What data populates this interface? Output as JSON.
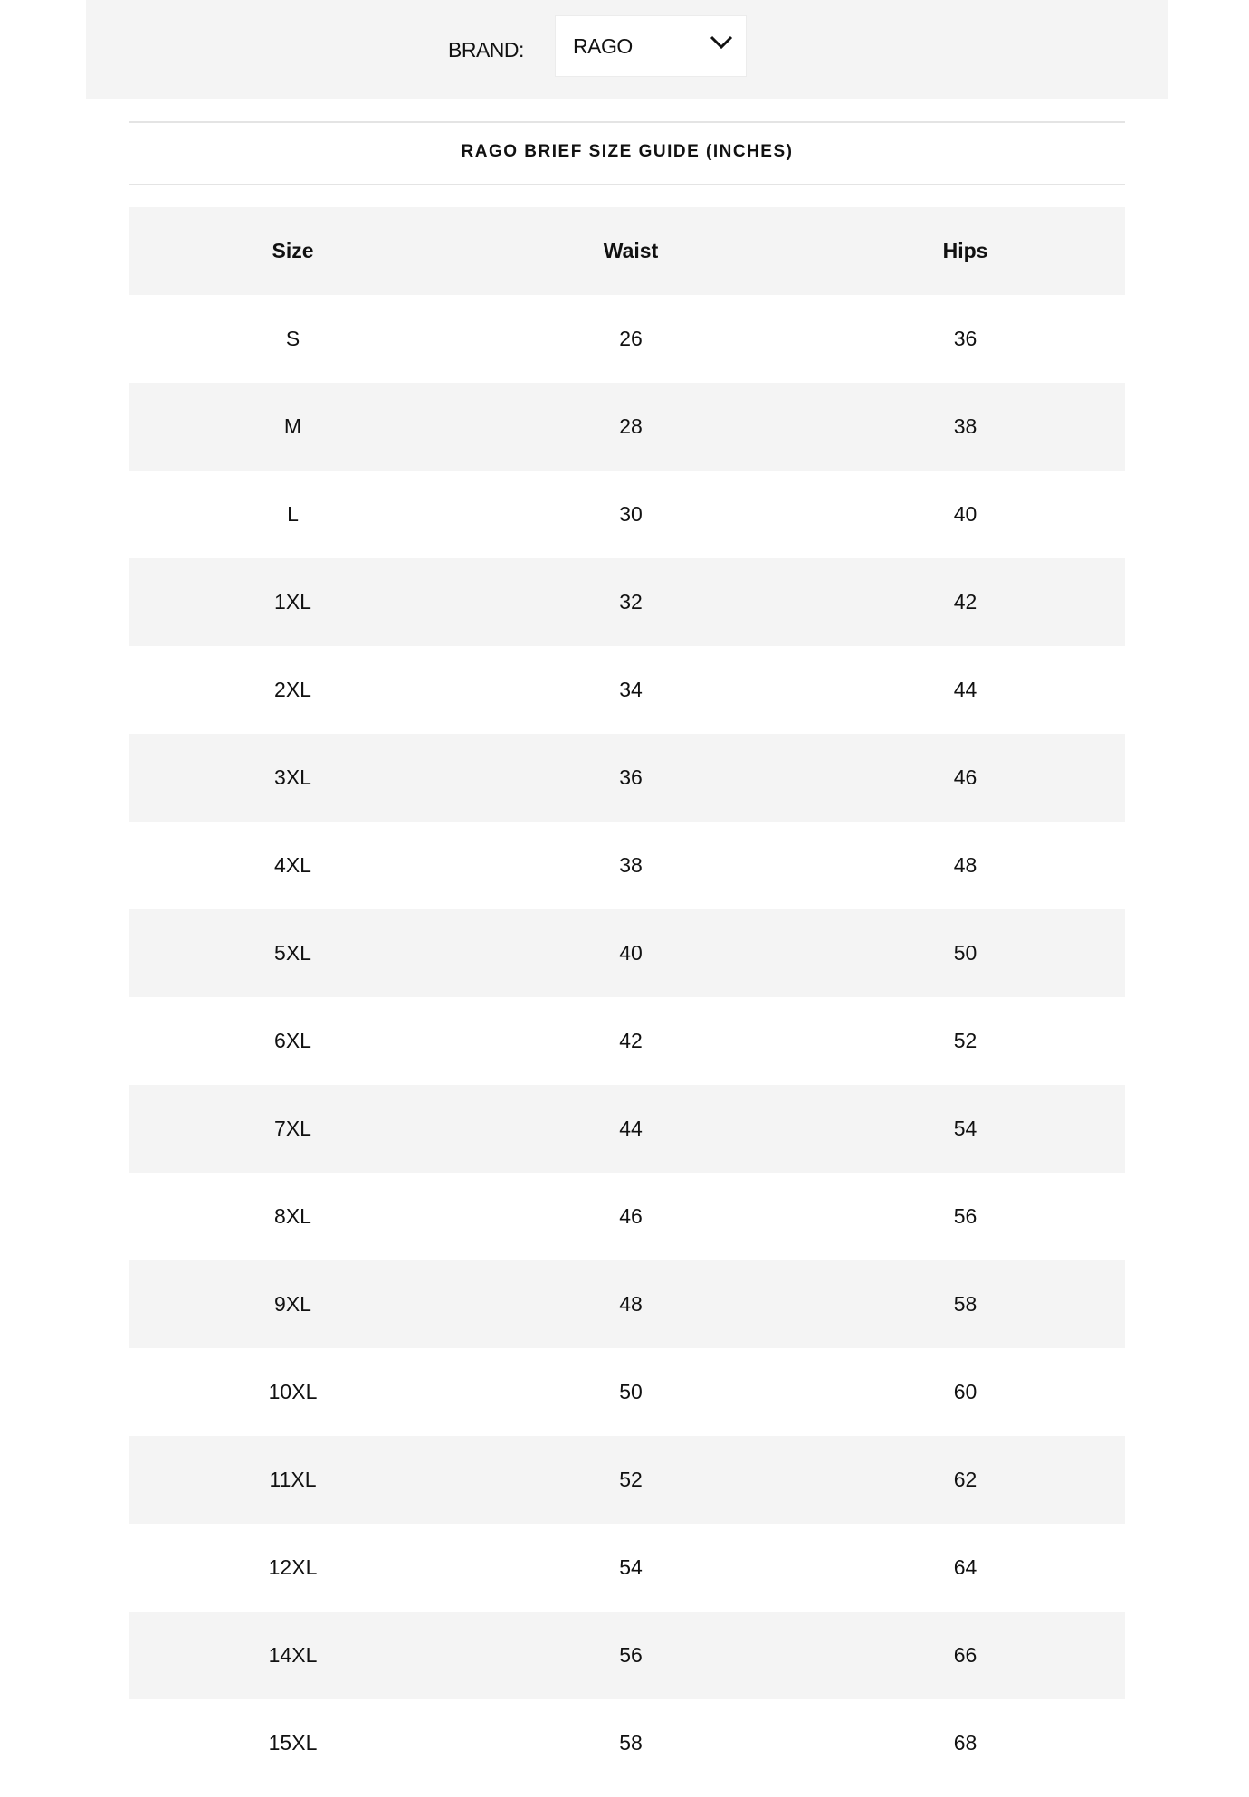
{
  "filter": {
    "label": "BRAND:",
    "selected": "RAGO",
    "icon": "chevron-down-icon"
  },
  "guide": {
    "title": "RAGO BRIEF SIZE GUIDE (INCHES)",
    "headers": [
      "Size",
      "Waist",
      "Hips"
    ],
    "rows": [
      [
        "S",
        "26",
        "36"
      ],
      [
        "M",
        "28",
        "38"
      ],
      [
        "L",
        "30",
        "40"
      ],
      [
        "1XL",
        "32",
        "42"
      ],
      [
        "2XL",
        "34",
        "44"
      ],
      [
        "3XL",
        "36",
        "46"
      ],
      [
        "4XL",
        "38",
        "48"
      ],
      [
        "5XL",
        "40",
        "50"
      ],
      [
        "6XL",
        "42",
        "52"
      ],
      [
        "7XL",
        "44",
        "54"
      ],
      [
        "8XL",
        "46",
        "56"
      ],
      [
        "9XL",
        "48",
        "58"
      ],
      [
        "10XL",
        "50",
        "60"
      ],
      [
        "11XL",
        "52",
        "62"
      ],
      [
        "12XL",
        "54",
        "64"
      ],
      [
        "14XL",
        "56",
        "66"
      ],
      [
        "15XL",
        "58",
        "68"
      ]
    ]
  },
  "colors": {
    "band": "#f4f4f4",
    "text": "#111111"
  }
}
